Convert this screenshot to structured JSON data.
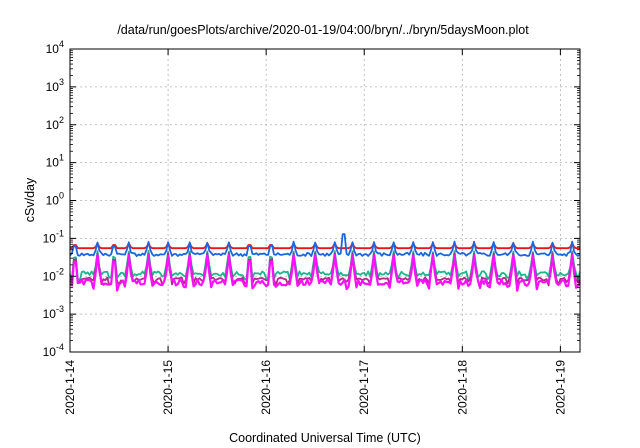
{
  "chart_data": {
    "type": "line",
    "title": "/data/run/goesPlots/archive/2020-01-19/04:00/bryn/../bryn/5daysMoon.plot",
    "xlabel": "Coordinated Universal Time (UTC)",
    "ylabel": "cSv/day",
    "yscale": "log",
    "ylim": [
      0.0001,
      10000
    ],
    "xlim": [
      0,
      5.2
    ],
    "grid": true,
    "y_ticks": [
      {
        "value": 0.0001,
        "base": "10",
        "exp": "-4"
      },
      {
        "value": 0.001,
        "base": "10",
        "exp": "-3"
      },
      {
        "value": 0.01,
        "base": "10",
        "exp": "-2"
      },
      {
        "value": 0.1,
        "base": "10",
        "exp": "-1"
      },
      {
        "value": 1,
        "base": "10",
        "exp": "0"
      },
      {
        "value": 10,
        "base": "10",
        "exp": "1"
      },
      {
        "value": 100,
        "base": "10",
        "exp": "2"
      },
      {
        "value": 1000,
        "base": "10",
        "exp": "3"
      },
      {
        "value": 10000,
        "base": "10",
        "exp": "4"
      }
    ],
    "x_ticks": [
      {
        "value": 0,
        "label": "2020-1-14"
      },
      {
        "value": 1,
        "label": "2020-1-15"
      },
      {
        "value": 2,
        "label": "2020-1-16"
      },
      {
        "value": 3,
        "label": "2020-1-17"
      },
      {
        "value": 4,
        "label": "2020-1-18"
      },
      {
        "value": 5,
        "label": "2020-1-19"
      }
    ],
    "x_units": "days since 2020-01-14 00:00 UTC",
    "spikes": [
      0.05,
      0.28,
      0.45,
      0.6,
      0.8,
      1.0,
      1.22,
      1.4,
      1.62,
      1.83,
      2.05,
      2.28,
      2.5,
      2.7,
      2.88,
      3.1,
      3.3,
      3.5,
      3.7,
      3.92,
      4.12,
      4.32,
      4.52,
      4.72,
      4.92,
      5.12
    ],
    "series": [
      {
        "color": "#e8141a",
        "base": 0.055,
        "spike": 0.075,
        "variance": 0.0
      },
      {
        "color": "#1b66e0",
        "base": 0.038,
        "spike": 0.08,
        "variance": 0.008
      },
      {
        "color": "#1fb58c",
        "base": 0.012,
        "spike": 0.045,
        "variance": 0.003
      },
      {
        "color": "#b3278c",
        "base": 0.0085,
        "spike": 0.04,
        "variance": 0.0015
      },
      {
        "color": "#ff10ff",
        "base": 0.007,
        "spike": 0.035,
        "variance": 0.0025
      }
    ]
  }
}
